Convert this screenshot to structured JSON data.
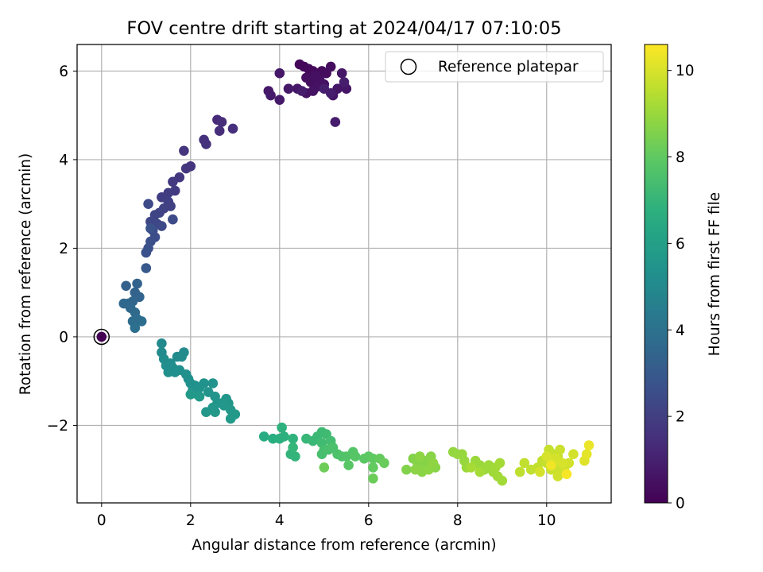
{
  "chart_data": {
    "type": "scatter",
    "title": "FOV centre drift starting at 2024/04/17 07:10:05",
    "xlabel": "Angular distance from reference (arcmin)",
    "ylabel": "Rotation from reference (arcmin)",
    "xlim": [
      -0.55,
      11.45
    ],
    "ylim": [
      -3.75,
      6.6
    ],
    "xticks": [
      0,
      2,
      4,
      6,
      8,
      10
    ],
    "yticks": [
      -2,
      0,
      2,
      4,
      6
    ],
    "xtick_labels": [
      "0",
      "2",
      "4",
      "6",
      "8",
      "10"
    ],
    "ytick_labels": [
      "−2",
      "0",
      "2",
      "4",
      "6"
    ],
    "grid": true,
    "legend": {
      "position": "top-right",
      "entries": [
        {
          "label": "Reference platepar",
          "marker": "open-circle"
        }
      ]
    },
    "colorbar": {
      "label": "Hours from first FF file",
      "colormap": "viridis",
      "range": [
        0,
        10.6
      ],
      "ticks": [
        0,
        2,
        4,
        6,
        8,
        10
      ],
      "tick_labels": [
        "0",
        "2",
        "4",
        "6",
        "8",
        "10"
      ]
    },
    "reference_point": {
      "x": 0,
      "y": 0,
      "t": 0
    },
    "series": [
      {
        "points": [
          [
            0.0,
            0.0,
            0.0
          ],
          [
            4.45,
            6.15,
            0.2
          ],
          [
            4.55,
            6.1,
            0.22
          ],
          [
            4.65,
            6.05,
            0.25
          ],
          [
            4.75,
            6.0,
            0.27
          ],
          [
            4.85,
            5.95,
            0.3
          ],
          [
            4.95,
            6.0,
            0.32
          ],
          [
            5.05,
            5.95,
            0.35
          ],
          [
            5.15,
            6.1,
            0.37
          ],
          [
            4.6,
            5.85,
            0.4
          ],
          [
            4.7,
            5.75,
            0.42
          ],
          [
            4.8,
            5.9,
            0.45
          ],
          [
            4.9,
            5.8,
            0.47
          ],
          [
            5.0,
            5.7,
            0.5
          ],
          [
            4.85,
            5.65,
            0.52
          ],
          [
            4.75,
            5.55,
            0.55
          ],
          [
            4.6,
            5.5,
            0.57
          ],
          [
            5.2,
            5.45,
            0.6
          ],
          [
            5.3,
            5.6,
            0.62
          ],
          [
            5.4,
            5.95,
            0.64
          ],
          [
            5.5,
            5.6,
            0.66
          ],
          [
            4.4,
            5.6,
            0.68
          ],
          [
            4.2,
            5.6,
            0.7
          ],
          [
            4.0,
            5.95,
            0.72
          ],
          [
            3.75,
            5.55,
            0.74
          ],
          [
            3.8,
            5.45,
            0.76
          ],
          [
            4.0,
            5.35,
            0.78
          ],
          [
            5.25,
            4.85,
            0.82
          ],
          [
            5.15,
            5.5,
            0.84
          ],
          [
            4.5,
            5.55,
            0.86
          ],
          [
            5.45,
            5.75,
            0.88
          ],
          [
            5.0,
            5.6,
            0.9
          ],
          [
            2.6,
            4.9,
            1.3
          ],
          [
            2.7,
            4.85,
            1.35
          ],
          [
            2.65,
            4.65,
            1.4
          ],
          [
            2.95,
            4.7,
            1.45
          ],
          [
            2.3,
            4.45,
            1.5
          ],
          [
            2.35,
            4.35,
            1.55
          ],
          [
            1.85,
            4.2,
            1.6
          ],
          [
            2.0,
            3.85,
            1.65
          ],
          [
            1.9,
            3.8,
            1.7
          ],
          [
            1.75,
            3.6,
            1.75
          ],
          [
            1.6,
            3.5,
            1.8
          ],
          [
            1.65,
            3.3,
            1.85
          ],
          [
            1.5,
            3.25,
            1.9
          ],
          [
            1.35,
            3.15,
            1.95
          ],
          [
            1.5,
            3.05,
            2.0
          ],
          [
            1.55,
            2.95,
            2.05
          ],
          [
            1.4,
            2.9,
            2.1
          ],
          [
            1.3,
            2.8,
            2.15
          ],
          [
            1.2,
            2.75,
            2.2
          ],
          [
            1.1,
            2.6,
            2.25
          ],
          [
            1.25,
            2.55,
            2.3
          ],
          [
            1.35,
            2.5,
            2.35
          ],
          [
            1.05,
            3.0,
            2.4
          ],
          [
            1.6,
            2.65,
            2.45
          ],
          [
            1.15,
            2.4,
            2.5
          ],
          [
            1.2,
            2.25,
            2.55
          ],
          [
            1.1,
            2.15,
            2.6
          ],
          [
            1.05,
            2.0,
            2.65
          ],
          [
            1.0,
            1.9,
            2.7
          ],
          [
            1.1,
            2.45,
            2.75
          ],
          [
            1.0,
            1.55,
            3.0
          ],
          [
            0.55,
            1.15,
            3.3
          ],
          [
            0.8,
            1.2,
            3.35
          ],
          [
            0.75,
            1.0,
            3.4
          ],
          [
            0.85,
            0.9,
            3.45
          ],
          [
            0.7,
            0.8,
            3.5
          ],
          [
            0.6,
            0.75,
            3.55
          ],
          [
            0.5,
            0.75,
            3.6
          ],
          [
            0.65,
            0.65,
            3.65
          ],
          [
            0.75,
            0.55,
            3.7
          ],
          [
            0.8,
            0.4,
            3.75
          ],
          [
            0.7,
            0.35,
            3.8
          ],
          [
            0.9,
            0.35,
            3.85
          ],
          [
            0.75,
            0.2,
            3.9
          ],
          [
            1.35,
            -0.15,
            5.0
          ],
          [
            1.35,
            -0.35,
            5.05
          ],
          [
            1.85,
            -0.35,
            5.1
          ],
          [
            1.8,
            -0.45,
            5.12
          ],
          [
            1.7,
            -0.45,
            5.14
          ],
          [
            1.4,
            -0.5,
            5.16
          ],
          [
            1.55,
            -0.6,
            5.18
          ],
          [
            1.45,
            -0.65,
            5.2
          ],
          [
            1.6,
            -0.7,
            5.22
          ],
          [
            1.75,
            -0.75,
            5.24
          ],
          [
            1.65,
            -0.8,
            5.26
          ],
          [
            1.5,
            -0.8,
            5.28
          ],
          [
            1.9,
            -0.85,
            5.3
          ],
          [
            1.95,
            -0.95,
            5.32
          ],
          [
            2.0,
            -1.05,
            5.34
          ],
          [
            2.1,
            -1.1,
            5.36
          ],
          [
            2.2,
            -1.15,
            5.38
          ],
          [
            2.3,
            -1.05,
            5.4
          ],
          [
            2.5,
            -1.05,
            5.42
          ],
          [
            2.05,
            -1.2,
            5.44
          ],
          [
            2.15,
            -1.3,
            5.46
          ],
          [
            2.4,
            -1.25,
            5.48
          ],
          [
            2.55,
            -1.35,
            5.5
          ],
          [
            2.6,
            -1.5,
            5.52
          ],
          [
            2.7,
            -1.5,
            5.54
          ],
          [
            2.8,
            -1.4,
            5.56
          ],
          [
            2.85,
            -1.5,
            5.58
          ],
          [
            2.75,
            -1.55,
            5.6
          ],
          [
            2.5,
            -1.6,
            5.62
          ],
          [
            2.35,
            -1.7,
            5.64
          ],
          [
            2.55,
            -1.7,
            5.66
          ],
          [
            2.9,
            -1.65,
            5.68
          ],
          [
            3.0,
            -1.75,
            5.7
          ],
          [
            2.9,
            -1.85,
            5.72
          ],
          [
            2.2,
            -1.35,
            5.74
          ],
          [
            2.0,
            -1.3,
            5.76
          ],
          [
            3.65,
            -2.25,
            6.6
          ],
          [
            3.85,
            -2.3,
            6.65
          ],
          [
            4.0,
            -2.3,
            6.7
          ],
          [
            4.1,
            -2.25,
            6.75
          ],
          [
            4.05,
            -2.05,
            6.8
          ],
          [
            4.3,
            -2.3,
            6.85
          ],
          [
            4.25,
            -2.65,
            6.9
          ],
          [
            4.35,
            -2.7,
            6.95
          ],
          [
            4.3,
            -2.5,
            7.0
          ],
          [
            4.6,
            -2.3,
            7.05
          ],
          [
            4.75,
            -2.35,
            7.1
          ],
          [
            4.85,
            -2.25,
            7.15
          ],
          [
            4.95,
            -2.15,
            7.2
          ],
          [
            5.05,
            -2.2,
            7.25
          ],
          [
            4.95,
            -2.4,
            7.3
          ],
          [
            5.15,
            -2.35,
            7.35
          ],
          [
            5.0,
            -2.55,
            7.4
          ],
          [
            4.95,
            -2.65,
            7.45
          ],
          [
            5.1,
            -2.55,
            7.5
          ],
          [
            5.2,
            -2.5,
            7.55
          ],
          [
            5.3,
            -2.65,
            7.6
          ],
          [
            5.4,
            -2.7,
            7.65
          ],
          [
            5.5,
            -2.7,
            7.7
          ],
          [
            5.65,
            -2.6,
            7.75
          ],
          [
            5.7,
            -2.7,
            7.8
          ],
          [
            5.55,
            -2.9,
            7.85
          ],
          [
            5.9,
            -2.75,
            7.9
          ],
          [
            6.0,
            -2.7,
            7.95
          ],
          [
            6.1,
            -2.75,
            8.0
          ],
          [
            6.1,
            -2.95,
            8.05
          ],
          [
            6.25,
            -2.75,
            8.1
          ],
          [
            6.35,
            -2.85,
            8.15
          ],
          [
            6.1,
            -3.2,
            8.2
          ],
          [
            5.0,
            -2.95,
            8.25
          ],
          [
            6.85,
            -3.0,
            8.6
          ],
          [
            7.0,
            -2.75,
            8.62
          ],
          [
            7.1,
            -2.85,
            8.64
          ],
          [
            7.2,
            -2.95,
            8.66
          ],
          [
            7.3,
            -2.8,
            8.68
          ],
          [
            7.4,
            -2.7,
            8.7
          ],
          [
            7.5,
            -2.95,
            8.72
          ],
          [
            7.2,
            -3.05,
            8.74
          ],
          [
            7.05,
            -3.0,
            8.76
          ],
          [
            7.15,
            -2.7,
            8.78
          ],
          [
            7.35,
            -3.0,
            8.8
          ],
          [
            7.45,
            -2.85,
            8.82
          ],
          [
            7.9,
            -2.6,
            8.9
          ],
          [
            8.0,
            -2.65,
            8.92
          ],
          [
            8.1,
            -2.65,
            8.94
          ],
          [
            8.15,
            -2.8,
            8.96
          ],
          [
            8.2,
            -2.95,
            8.98
          ],
          [
            8.4,
            -2.8,
            9.0
          ],
          [
            8.5,
            -2.9,
            9.02
          ],
          [
            8.6,
            -3.0,
            9.04
          ],
          [
            8.7,
            -2.9,
            9.06
          ],
          [
            8.8,
            -3.05,
            9.08
          ],
          [
            8.9,
            -3.15,
            9.1
          ],
          [
            8.85,
            -2.95,
            9.12
          ],
          [
            9.0,
            -3.25,
            9.14
          ],
          [
            8.95,
            -2.85,
            9.16
          ],
          [
            8.5,
            -3.05,
            9.18
          ],
          [
            8.3,
            -2.95,
            9.2
          ],
          [
            9.4,
            -3.05,
            9.6
          ],
          [
            9.5,
            -2.85,
            9.62
          ],
          [
            9.65,
            -3.0,
            9.64
          ],
          [
            9.8,
            -2.95,
            9.66
          ],
          [
            9.9,
            -2.8,
            9.68
          ],
          [
            10.0,
            -2.85,
            9.7
          ],
          [
            10.05,
            -2.55,
            9.72
          ],
          [
            10.15,
            -2.65,
            9.74
          ],
          [
            10.25,
            -2.7,
            9.76
          ],
          [
            10.3,
            -2.55,
            9.78
          ],
          [
            10.2,
            -2.9,
            9.8
          ],
          [
            10.1,
            -3.0,
            9.82
          ],
          [
            10.3,
            -3.05,
            9.84
          ],
          [
            10.25,
            -3.15,
            9.86
          ],
          [
            10.4,
            -2.95,
            9.88
          ],
          [
            10.5,
            -2.85,
            9.9
          ],
          [
            10.6,
            -2.65,
            9.92
          ],
          [
            10.2,
            -2.75,
            9.94
          ],
          [
            9.85,
            -3.05,
            9.96
          ],
          [
            10.0,
            -2.7,
            9.98
          ],
          [
            10.35,
            -2.85,
            10.0
          ],
          [
            10.85,
            -2.8,
            10.1
          ],
          [
            10.9,
            -2.65,
            10.2
          ],
          [
            10.95,
            -2.45,
            10.3
          ],
          [
            10.1,
            -2.9,
            10.4
          ],
          [
            10.45,
            -3.1,
            10.5
          ]
        ]
      }
    ]
  }
}
